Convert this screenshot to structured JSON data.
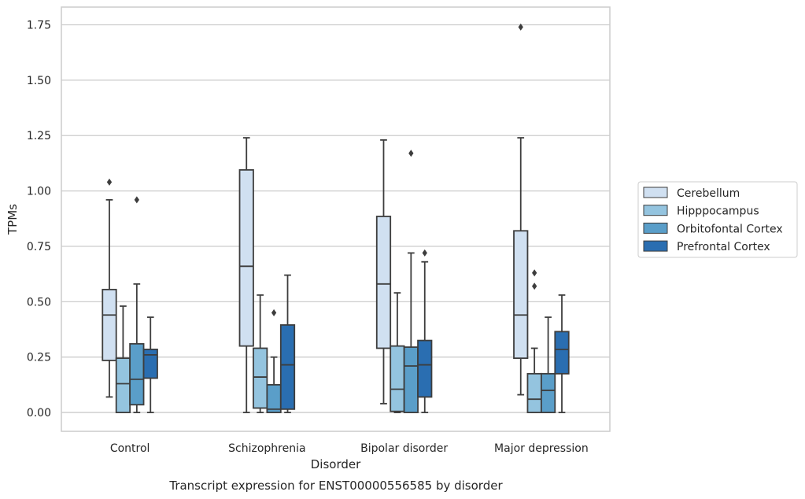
{
  "chart_data": {
    "type": "box",
    "title": "Transcript expression for ENST00000556585 by disorder",
    "xlabel": "Disorder",
    "ylabel": "TPMs",
    "ylim": [
      -0.085,
      1.83
    ],
    "yticks": [
      0.0,
      0.25,
      0.5,
      0.75,
      1.0,
      1.25,
      1.5,
      1.75
    ],
    "ytick_labels": [
      "0.00",
      "0.25",
      "0.50",
      "0.75",
      "1.00",
      "1.25",
      "1.50",
      "1.75"
    ],
    "grid": "horizontal",
    "legend_position": "right",
    "categories": [
      "Control",
      "Schizophrenia",
      "Bipolar disorder",
      "Major depression"
    ],
    "series": [
      {
        "name": "Cerebellum",
        "color": "#d0e0f1",
        "boxes": [
          {
            "whisker_low": 0.07,
            "q1": 0.235,
            "median": 0.44,
            "q3": 0.555,
            "whisker_high": 0.96,
            "outliers": [
              1.04
            ]
          },
          {
            "whisker_low": 0.0,
            "q1": 0.3,
            "median": 0.66,
            "q3": 1.095,
            "whisker_high": 1.24,
            "outliers": []
          },
          {
            "whisker_low": 0.04,
            "q1": 0.29,
            "median": 0.58,
            "q3": 0.885,
            "whisker_high": 1.23,
            "outliers": []
          },
          {
            "whisker_low": 0.08,
            "q1": 0.245,
            "median": 0.44,
            "q3": 0.82,
            "whisker_high": 1.24,
            "outliers": [
              1.74
            ]
          }
        ]
      },
      {
        "name": "Hipppocampus",
        "color": "#94c4df",
        "boxes": [
          {
            "whisker_low": 0.0,
            "q1": 0.0,
            "median": 0.13,
            "q3": 0.245,
            "whisker_high": 0.48,
            "outliers": []
          },
          {
            "whisker_low": 0.0,
            "q1": 0.02,
            "median": 0.16,
            "q3": 0.29,
            "whisker_high": 0.53,
            "outliers": []
          },
          {
            "whisker_low": 0.0,
            "q1": 0.005,
            "median": 0.105,
            "q3": 0.3,
            "whisker_high": 0.54,
            "outliers": []
          },
          {
            "whisker_low": 0.0,
            "q1": 0.0,
            "median": 0.06,
            "q3": 0.175,
            "whisker_high": 0.29,
            "outliers": [
              0.57,
              0.63
            ]
          }
        ]
      },
      {
        "name": "Orbitofontal Cortex",
        "color": "#5a9ec9",
        "boxes": [
          {
            "whisker_low": 0.0,
            "q1": 0.035,
            "median": 0.15,
            "q3": 0.31,
            "whisker_high": 0.58,
            "outliers": [
              0.96
            ]
          },
          {
            "whisker_low": 0.0,
            "q1": 0.0,
            "median": 0.015,
            "q3": 0.125,
            "whisker_high": 0.25,
            "outliers": [
              0.45
            ]
          },
          {
            "whisker_low": 0.0,
            "q1": 0.0,
            "median": 0.21,
            "q3": 0.295,
            "whisker_high": 0.72,
            "outliers": [
              1.17
            ]
          },
          {
            "whisker_low": 0.0,
            "q1": 0.0,
            "median": 0.1,
            "q3": 0.175,
            "whisker_high": 0.43,
            "outliers": []
          }
        ]
      },
      {
        "name": "Prefrontal Cortex",
        "color": "#2a6eb1",
        "boxes": [
          {
            "whisker_low": 0.0,
            "q1": 0.155,
            "median": 0.26,
            "q3": 0.285,
            "whisker_high": 0.43,
            "outliers": []
          },
          {
            "whisker_low": 0.0,
            "q1": 0.015,
            "median": 0.215,
            "q3": 0.395,
            "whisker_high": 0.62,
            "outliers": []
          },
          {
            "whisker_low": 0.0,
            "q1": 0.07,
            "median": 0.215,
            "q3": 0.325,
            "whisker_high": 0.68,
            "outliers": [
              0.72
            ]
          },
          {
            "whisker_low": 0.0,
            "q1": 0.175,
            "median": 0.285,
            "q3": 0.365,
            "whisker_high": 0.53,
            "outliers": []
          }
        ]
      }
    ]
  }
}
